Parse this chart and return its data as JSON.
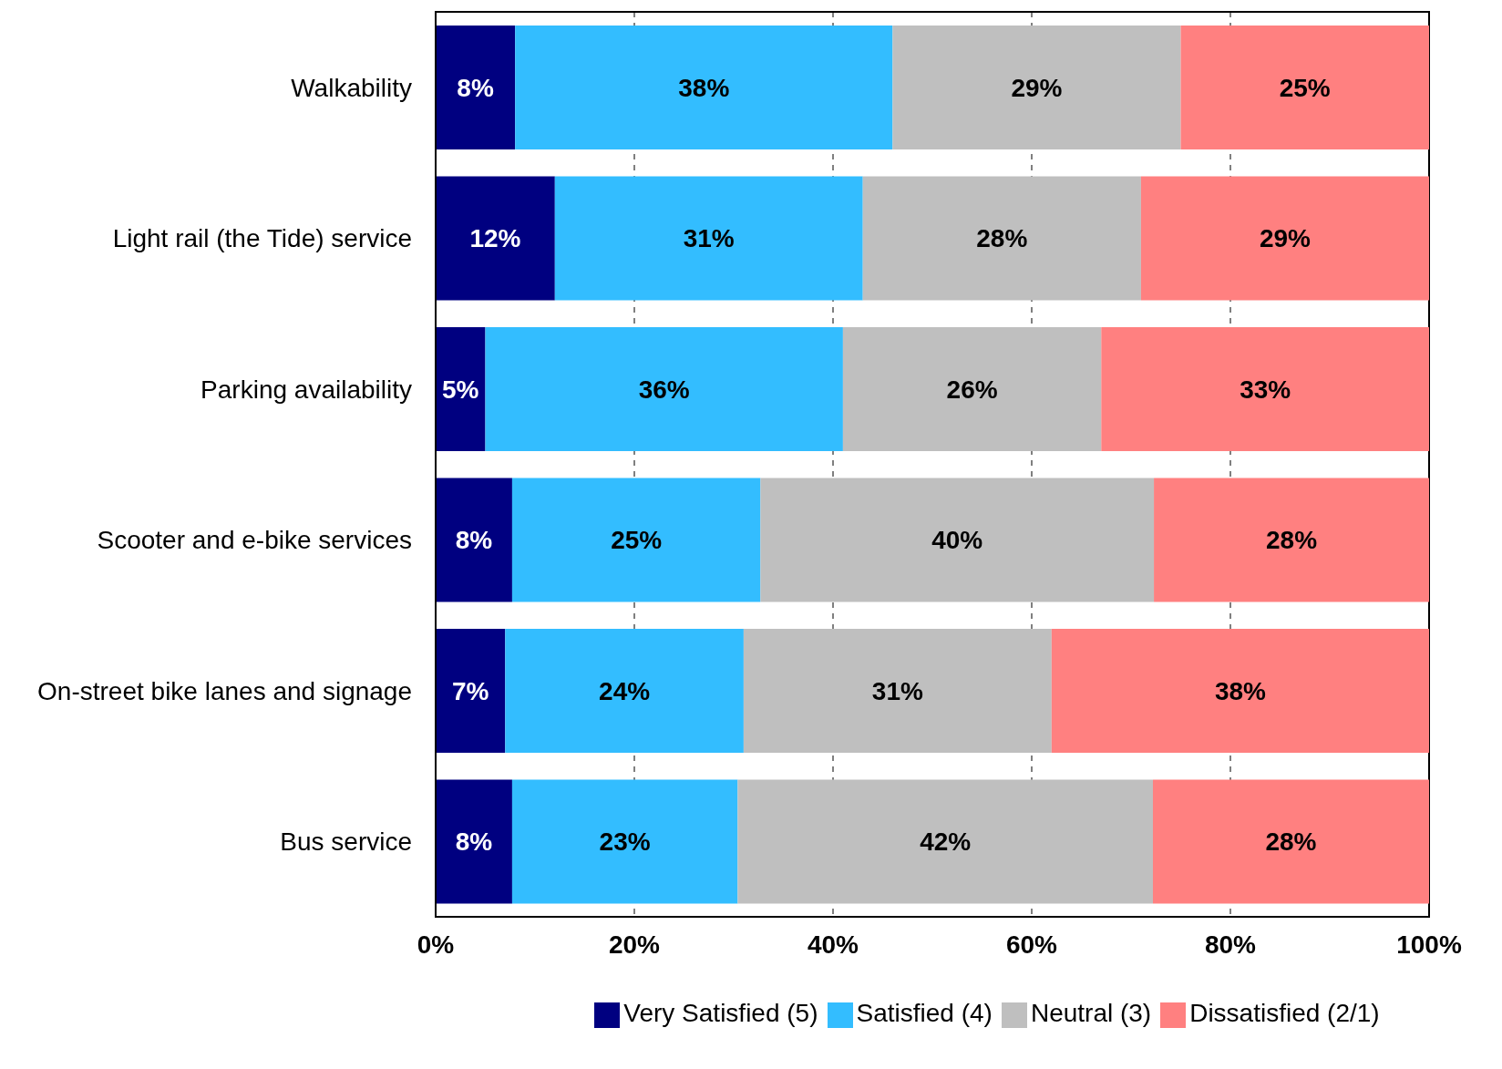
{
  "chart_data": {
    "type": "bar",
    "orientation": "horizontal",
    "stacked": true,
    "categories": [
      "Walkability",
      "Light rail (the Tide) service",
      "Parking availability",
      "Scooter and e-bike services",
      "On-street bike lanes and signage",
      "Bus service"
    ],
    "series": [
      {
        "name": "Very Satisfied (5)",
        "color": "#000080",
        "values": [
          8,
          12,
          5,
          7.7,
          7,
          7.7
        ],
        "value_labels": [
          "8%",
          "12%",
          "5%",
          "8%",
          "7%",
          "8%"
        ]
      },
      {
        "name": "Satisfied (4)",
        "color": "#33bdff",
        "values": [
          38,
          31,
          36,
          25,
          24,
          22.7
        ],
        "value_labels": [
          "38%",
          "31%",
          "36%",
          "25%",
          "24%",
          "23%"
        ]
      },
      {
        "name": "Neutral (3)",
        "color": "#bfbfbf",
        "values": [
          29,
          28,
          26,
          39.6,
          31,
          41.8
        ],
        "value_labels": [
          "29%",
          "28%",
          "26%",
          "40%",
          "31%",
          "42%"
        ]
      },
      {
        "name": "Dissatisfied (2/1)",
        "color": "#ff8080",
        "values": [
          25,
          29,
          33,
          27.7,
          38,
          27.8
        ],
        "value_labels": [
          "25%",
          "29%",
          "33%",
          "28%",
          "38%",
          "28%"
        ]
      }
    ],
    "xlim": [
      0,
      100
    ],
    "xticks": [
      {
        "value": 0,
        "label": "0%"
      },
      {
        "value": 20,
        "label": "20%"
      },
      {
        "value": 40,
        "label": "40%"
      },
      {
        "value": 60,
        "label": "60%"
      },
      {
        "value": 80,
        "label": "80%"
      },
      {
        "value": 100,
        "label": "100%"
      }
    ],
    "grid": "x",
    "legend": "bottom"
  }
}
